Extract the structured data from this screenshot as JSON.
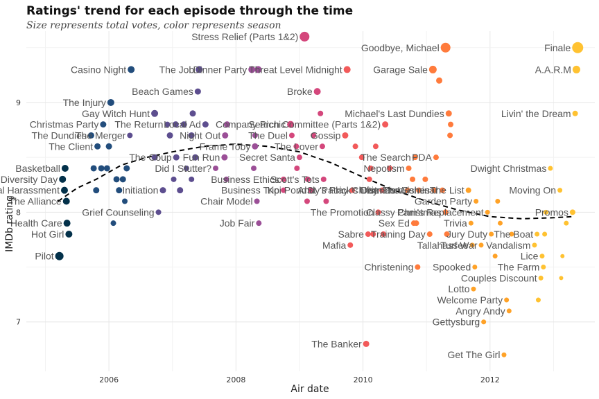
{
  "chart_data": {
    "type": "scatter",
    "title": "Ratings' trend for each episode through the time",
    "subtitle": "Size represents total votes, color represents season",
    "xlabel": "Air date",
    "ylabel": "IMDb rating",
    "xlim": [
      2004.7,
      2013.65
    ],
    "ylim": [
      6.55,
      9.65
    ],
    "x_ticks": [
      2006,
      2008,
      2010,
      2012
    ],
    "y_ticks": [
      7,
      8,
      9
    ],
    "grid": true,
    "legend": "none",
    "season_colors": {
      "1": "#03314a",
      "2": "#224d7c",
      "3": "#5d4e8f",
      "4": "#9b4f97",
      "5": "#d4477c",
      "6": "#f25a5a",
      "7": "#ff7b3c",
      "8": "#ffa227",
      "9": "#ffc231"
    },
    "trend": [
      [
        2005.2,
        8.1
      ],
      [
        2005.5,
        8.22
      ],
      [
        2005.8,
        8.3
      ],
      [
        2006.2,
        8.43
      ],
      [
        2006.6,
        8.5
      ],
      [
        2007.0,
        8.55
      ],
      [
        2007.5,
        8.6
      ],
      [
        2008.0,
        8.62
      ],
      [
        2008.5,
        8.6
      ],
      [
        2009.0,
        8.55
      ],
      [
        2009.5,
        8.45
      ],
      [
        2010.0,
        8.32
      ],
      [
        2010.5,
        8.2
      ],
      [
        2011.0,
        8.1
      ],
      [
        2011.5,
        8.02
      ],
      [
        2012.0,
        7.96
      ],
      [
        2012.5,
        7.94
      ],
      [
        2013.0,
        7.95
      ],
      [
        2013.3,
        7.96
      ]
    ],
    "points": [
      {
        "x": 2005.22,
        "y": 7.6,
        "season": 1,
        "size": 6,
        "label": "Pilot"
      },
      {
        "x": 2005.27,
        "y": 8.3,
        "season": 1,
        "size": 5,
        "label": "Diversity Day"
      },
      {
        "x": 2005.3,
        "y": 8.2,
        "season": 1,
        "size": 5,
        "label": "Sexual Harassment"
      },
      {
        "x": 2005.31,
        "y": 8.4,
        "season": 1,
        "size": 5,
        "label": "Basketball"
      },
      {
        "x": 2005.33,
        "y": 8.1,
        "season": 1,
        "size": 5,
        "label": "The Alliance"
      },
      {
        "x": 2005.34,
        "y": 7.9,
        "season": 1,
        "size": 5,
        "label": "Health Care"
      },
      {
        "x": 2005.37,
        "y": 7.8,
        "season": 1,
        "size": 5,
        "label": "Hot Girl"
      },
      {
        "x": 2005.72,
        "y": 8.7,
        "season": 2,
        "size": 4.5,
        "label": "The Dundies"
      },
      {
        "x": 2005.82,
        "y": 8.6,
        "season": 2,
        "size": 4.5,
        "label": "The Client"
      },
      {
        "x": 2005.91,
        "y": 8.8,
        "season": 2,
        "size": 4.5,
        "label": "Christmas Party"
      },
      {
        "x": 2006.03,
        "y": 9.0,
        "season": 2,
        "size": 5,
        "label": "The Injury"
      },
      {
        "x": 2006.07,
        "y": 7.9,
        "season": 2,
        "size": 4,
        "label": ""
      },
      {
        "x": 2006.0,
        "y": 8.6,
        "season": 2,
        "size": 4.5,
        "label": ""
      },
      {
        "x": 2005.88,
        "y": 8.4,
        "season": 2,
        "size": 4.5,
        "label": ""
      },
      {
        "x": 2005.97,
        "y": 8.4,
        "season": 2,
        "size": 4.5,
        "label": ""
      },
      {
        "x": 2006.12,
        "y": 8.3,
        "season": 2,
        "size": 4.5,
        "label": ""
      },
      {
        "x": 2006.16,
        "y": 8.2,
        "season": 2,
        "size": 4.5,
        "label": ""
      },
      {
        "x": 2006.22,
        "y": 8.3,
        "season": 2,
        "size": 4.5,
        "label": ""
      },
      {
        "x": 2006.25,
        "y": 8.1,
        "season": 2,
        "size": 4,
        "label": ""
      },
      {
        "x": 2006.28,
        "y": 8.4,
        "season": 2,
        "size": 4.5,
        "label": ""
      },
      {
        "x": 2006.35,
        "y": 9.3,
        "season": 2,
        "size": 5,
        "label": "Casino Night"
      },
      {
        "x": 2005.76,
        "y": 8.4,
        "season": 2,
        "size": 4.5,
        "label": ""
      },
      {
        "x": 2005.8,
        "y": 8.2,
        "season": 2,
        "size": 4.5,
        "label": ""
      },
      {
        "x": 2006.72,
        "y": 8.9,
        "season": 3,
        "size": 5,
        "label": "Gay Witch Hunt"
      },
      {
        "x": 2006.33,
        "y": 8.7,
        "season": 3,
        "size": 4,
        "label": "The Merger"
      },
      {
        "x": 2006.92,
        "y": 8.8,
        "season": 3,
        "size": 4,
        "label": "The Return"
      },
      {
        "x": 2007.06,
        "y": 8.5,
        "season": 3,
        "size": 4.5,
        "label": "The Coup"
      },
      {
        "x": 2007.4,
        "y": 9.1,
        "season": 3,
        "size": 4.5,
        "label": "Beach Games"
      },
      {
        "x": 2007.42,
        "y": 9.3,
        "season": 3,
        "size": 5,
        "label": "The Job"
      },
      {
        "x": 2006.78,
        "y": 8.0,
        "season": 3,
        "size": 4,
        "label": "Grief Counseling"
      },
      {
        "x": 2006.85,
        "y": 8.2,
        "season": 3,
        "size": 4.5,
        "label": "Initiation"
      },
      {
        "x": 2006.72,
        "y": 8.5,
        "season": 3,
        "size": 4.5,
        "label": ""
      },
      {
        "x": 2007.02,
        "y": 8.3,
        "season": 3,
        "size": 4,
        "label": ""
      },
      {
        "x": 2007.12,
        "y": 8.2,
        "season": 3,
        "size": 4.5,
        "label": ""
      },
      {
        "x": 2007.22,
        "y": 8.4,
        "season": 3,
        "size": 4,
        "label": ""
      },
      {
        "x": 2007.3,
        "y": 8.7,
        "season": 3,
        "size": 4.5,
        "label": ""
      },
      {
        "x": 2007.32,
        "y": 8.9,
        "season": 3,
        "size": 4.5,
        "label": ""
      },
      {
        "x": 2007.36,
        "y": 8.5,
        "season": 3,
        "size": 4.5,
        "label": ""
      },
      {
        "x": 2007.05,
        "y": 8.8,
        "season": 3,
        "size": 4.5,
        "label": ""
      },
      {
        "x": 2007.18,
        "y": 8.8,
        "season": 3,
        "size": 4.5,
        "label": ""
      },
      {
        "x": 2006.96,
        "y": 8.7,
        "season": 3,
        "size": 4.5,
        "label": ""
      },
      {
        "x": 2007.52,
        "y": 8.8,
        "season": 3,
        "size": 4.5,
        "label": "Local Ad"
      },
      {
        "x": 2007.3,
        "y": 8.3,
        "season": 3,
        "size": 4,
        "label": ""
      },
      {
        "x": 2007.68,
        "y": 8.4,
        "season": 4,
        "size": 4,
        "label": "Did I Stutter?"
      },
      {
        "x": 2007.82,
        "y": 8.5,
        "season": 4,
        "size": 4.5,
        "label": "Fun Run"
      },
      {
        "x": 2007.83,
        "y": 8.7,
        "season": 4,
        "size": 4.5,
        "label": "Night Out"
      },
      {
        "x": 2007.85,
        "y": 8.3,
        "season": 4,
        "size": 4,
        "label": ""
      },
      {
        "x": 2007.86,
        "y": 8.8,
        "season": 4,
        "size": 4.5,
        "label": ""
      },
      {
        "x": 2008.25,
        "y": 9.3,
        "season": 4,
        "size": 5,
        "label": "Dinner Party"
      },
      {
        "x": 2008.35,
        "y": 9.3,
        "season": 4,
        "size": 5,
        "label": ""
      },
      {
        "x": 2008.28,
        "y": 8.4,
        "season": 4,
        "size": 4,
        "label": ""
      },
      {
        "x": 2008.3,
        "y": 8.7,
        "season": 4,
        "size": 4,
        "label": ""
      },
      {
        "x": 2008.33,
        "y": 8.1,
        "season": 4,
        "size": 4,
        "label": "Chair Model"
      },
      {
        "x": 2008.36,
        "y": 7.9,
        "season": 4,
        "size": 4,
        "label": "Job Fair"
      },
      {
        "x": 2008.3,
        "y": 8.6,
        "season": 4,
        "size": 4.5,
        "label": "Frame Toby"
      },
      {
        "x": 2008.75,
        "y": 8.2,
        "season": 5,
        "size": 4,
        "label": "Business Trip"
      },
      {
        "x": 2008.75,
        "y": 8.3,
        "season": 5,
        "size": 4,
        "label": "Business Ethics"
      },
      {
        "x": 2008.86,
        "y": 8.8,
        "season": 5,
        "size": 5,
        "label": "Company Picnic"
      },
      {
        "x": 2008.88,
        "y": 8.7,
        "season": 5,
        "size": 4,
        "label": "The Duel"
      },
      {
        "x": 2008.95,
        "y": 8.6,
        "season": 5,
        "size": 4,
        "label": ""
      },
      {
        "x": 2008.96,
        "y": 8.4,
        "season": 5,
        "size": 4,
        "label": ""
      },
      {
        "x": 2009.0,
        "y": 8.5,
        "season": 5,
        "size": 4,
        "label": "Secret Santa"
      },
      {
        "x": 2009.08,
        "y": 9.6,
        "season": 5,
        "size": 7,
        "label": "Stress Relief (Parts 1&2)"
      },
      {
        "x": 2009.12,
        "y": 8.1,
        "season": 5,
        "size": 4,
        "label": ""
      },
      {
        "x": 2009.13,
        "y": 8.3,
        "season": 5,
        "size": 4,
        "label": ""
      },
      {
        "x": 2009.18,
        "y": 8.2,
        "season": 5,
        "size": 4,
        "label": "Koi Pond"
      },
      {
        "x": 2009.22,
        "y": 8.7,
        "season": 5,
        "size": 4,
        "label": ""
      },
      {
        "x": 2009.28,
        "y": 9.1,
        "season": 5,
        "size": 5,
        "label": "Broke"
      },
      {
        "x": 2009.33,
        "y": 8.9,
        "season": 5,
        "size": 4,
        "label": ""
      },
      {
        "x": 2009.36,
        "y": 8.6,
        "season": 5,
        "size": 4,
        "label": "The Lover"
      },
      {
        "x": 2009.38,
        "y": 8.3,
        "season": 5,
        "size": 4,
        "label": "Scott's Tots"
      },
      {
        "x": 2009.42,
        "y": 8.1,
        "season": 5,
        "size": 4,
        "label": ""
      },
      {
        "x": 2009.72,
        "y": 8.7,
        "season": 6,
        "size": 4.5,
        "label": "Gossip"
      },
      {
        "x": 2009.75,
        "y": 9.3,
        "season": 6,
        "size": 5,
        "label": "Threat Level Midnight"
      },
      {
        "x": 2009.8,
        "y": 7.7,
        "season": 6,
        "size": 4,
        "label": "Mafia"
      },
      {
        "x": 2009.83,
        "y": 8.2,
        "season": 6,
        "size": 4,
        "label": "Andy's Play"
      },
      {
        "x": 2009.88,
        "y": 8.6,
        "season": 6,
        "size": 4,
        "label": ""
      },
      {
        "x": 2009.98,
        "y": 8.5,
        "season": 6,
        "size": 4,
        "label": ""
      },
      {
        "x": 2010.05,
        "y": 6.8,
        "season": 6,
        "size": 4.5,
        "label": "The Banker"
      },
      {
        "x": 2010.08,
        "y": 7.8,
        "season": 6,
        "size": 4,
        "label": "Sabre"
      },
      {
        "x": 2010.1,
        "y": 8.3,
        "season": 6,
        "size": 4,
        "label": ""
      },
      {
        "x": 2010.12,
        "y": 8.4,
        "season": 6,
        "size": 4,
        "label": ""
      },
      {
        "x": 2010.16,
        "y": 7.8,
        "season": 6,
        "size": 4,
        "label": ""
      },
      {
        "x": 2010.2,
        "y": 8.6,
        "season": 6,
        "size": 4,
        "label": ""
      },
      {
        "x": 2010.24,
        "y": 8.0,
        "season": 6,
        "size": 4,
        "label": "The Promotion"
      },
      {
        "x": 2010.3,
        "y": 8.2,
        "season": 6,
        "size": 4,
        "label": "St. Patrick's Day"
      },
      {
        "x": 2010.32,
        "y": 7.8,
        "season": 6,
        "size": 4,
        "label": ""
      },
      {
        "x": 2010.35,
        "y": 8.8,
        "season": 6,
        "size": 4.5,
        "label": "Search Committee (Parts 1&2)"
      },
      {
        "x": 2010.42,
        "y": 8.4,
        "season": 6,
        "size": 4,
        "label": ""
      },
      {
        "x": 2010.7,
        "y": 8.2,
        "season": 7,
        "size": 4,
        "label": "Ultimatum"
      },
      {
        "x": 2010.72,
        "y": 8.4,
        "season": 7,
        "size": 4,
        "label": "Nepotism"
      },
      {
        "x": 2010.78,
        "y": 8.3,
        "season": 7,
        "size": 4,
        "label": ""
      },
      {
        "x": 2010.82,
        "y": 8.5,
        "season": 7,
        "size": 4,
        "label": "The Search"
      },
      {
        "x": 2010.8,
        "y": 7.9,
        "season": 7,
        "size": 4,
        "label": "Sex Ed"
      },
      {
        "x": 2010.84,
        "y": 7.9,
        "season": 7,
        "size": 4,
        "label": ""
      },
      {
        "x": 2010.86,
        "y": 7.5,
        "season": 7,
        "size": 4,
        "label": "Christening"
      },
      {
        "x": 2010.88,
        "y": 8.2,
        "season": 7,
        "size": 4,
        "label": ""
      },
      {
        "x": 2010.98,
        "y": 8.3,
        "season": 7,
        "size": 4,
        "label": ""
      },
      {
        "x": 2011.1,
        "y": 9.3,
        "season": 7,
        "size": 5.5,
        "label": "Garage Sale"
      },
      {
        "x": 2011.15,
        "y": 8.5,
        "season": 7,
        "size": 4,
        "label": "PDA"
      },
      {
        "x": 2011.2,
        "y": 9.2,
        "season": 7,
        "size": 4.5,
        "label": ""
      },
      {
        "x": 2011.25,
        "y": 8.2,
        "season": 7,
        "size": 4,
        "label": "The Seminar"
      },
      {
        "x": 2011.3,
        "y": 8.0,
        "season": 7,
        "size": 4,
        "label": "Classy Christmas"
      },
      {
        "x": 2011.32,
        "y": 7.8,
        "season": 7,
        "size": 4,
        "label": ""
      },
      {
        "x": 2011.35,
        "y": 8.9,
        "season": 7,
        "size": 4.5,
        "label": "Michael's Last Dundies"
      },
      {
        "x": 2011.37,
        "y": 8.7,
        "season": 7,
        "size": 4,
        "label": ""
      },
      {
        "x": 2011.38,
        "y": 8.8,
        "season": 7,
        "size": 4,
        "label": ""
      },
      {
        "x": 2011.3,
        "y": 9.5,
        "season": 7,
        "size": 7,
        "label": "Goodbye, Michael"
      },
      {
        "x": 2011.12,
        "y": 8.2,
        "season": 7,
        "size": 4,
        "label": "Christmas Wishes"
      },
      {
        "x": 2011.05,
        "y": 7.8,
        "season": 7,
        "size": 4,
        "label": "Training Day"
      },
      {
        "x": 2011.66,
        "y": 8.2,
        "season": 8,
        "size": 4,
        "label": "The List"
      },
      {
        "x": 2011.7,
        "y": 7.9,
        "season": 8,
        "size": 3.5,
        "label": "Trivia"
      },
      {
        "x": 2011.72,
        "y": 7.7,
        "season": 8,
        "size": 3.5,
        "label": "Tallahassee"
      },
      {
        "x": 2011.74,
        "y": 7.3,
        "season": 8,
        "size": 3.5,
        "label": "Lotto"
      },
      {
        "x": 2011.76,
        "y": 7.5,
        "season": 8,
        "size": 3.5,
        "label": "Spooked"
      },
      {
        "x": 2011.78,
        "y": 8.1,
        "season": 8,
        "size": 3.5,
        "label": "Garden Party"
      },
      {
        "x": 2011.86,
        "y": 7.7,
        "season": 8,
        "size": 3.5,
        "label": "Turf War"
      },
      {
        "x": 2011.9,
        "y": 7.0,
        "season": 8,
        "size": 3.5,
        "label": "Gettysburg"
      },
      {
        "x": 2011.96,
        "y": 8.0,
        "season": 8,
        "size": 3.5,
        "label": "Pam's Replacement"
      },
      {
        "x": 2012.02,
        "y": 7.8,
        "season": 8,
        "size": 3.5,
        "label": "Jury Duty"
      },
      {
        "x": 2012.08,
        "y": 7.6,
        "season": 8,
        "size": 3.5,
        "label": ""
      },
      {
        "x": 2012.12,
        "y": 8.1,
        "season": 8,
        "size": 3.5,
        "label": ""
      },
      {
        "x": 2012.16,
        "y": 7.9,
        "season": 8,
        "size": 3.5,
        "label": ""
      },
      {
        "x": 2012.22,
        "y": 6.7,
        "season": 8,
        "size": 3.5,
        "label": "Get The Girl"
      },
      {
        "x": 2012.26,
        "y": 7.2,
        "season": 8,
        "size": 3.5,
        "label": "Welcome Party"
      },
      {
        "x": 2012.3,
        "y": 7.1,
        "season": 8,
        "size": 3.5,
        "label": "Angry Andy"
      },
      {
        "x": 2012.34,
        "y": 7.8,
        "season": 8,
        "size": 3.5,
        "label": ""
      },
      {
        "x": 2012.7,
        "y": 7.7,
        "season": 9,
        "size": 3.5,
        "label": "Vandalism"
      },
      {
        "x": 2012.74,
        "y": 7.8,
        "season": 9,
        "size": 3.5,
        "label": "The Boat"
      },
      {
        "x": 2012.76,
        "y": 7.2,
        "season": 9,
        "size": 3.5,
        "label": ""
      },
      {
        "x": 2012.8,
        "y": 7.4,
        "season": 9,
        "size": 3.5,
        "label": "Couples Discount"
      },
      {
        "x": 2012.82,
        "y": 7.6,
        "season": 9,
        "size": 3.5,
        "label": "Lice"
      },
      {
        "x": 2012.84,
        "y": 7.5,
        "season": 9,
        "size": 3.5,
        "label": "The Farm"
      },
      {
        "x": 2012.86,
        "y": 7.8,
        "season": 9,
        "size": 3.5,
        "label": ""
      },
      {
        "x": 2012.88,
        "y": 8.0,
        "season": 9,
        "size": 3.5,
        "label": ""
      },
      {
        "x": 2012.95,
        "y": 8.4,
        "season": 9,
        "size": 3.5,
        "label": "Dwight Christmas"
      },
      {
        "x": 2013.1,
        "y": 8.2,
        "season": 9,
        "size": 3.5,
        "label": "Moving On"
      },
      {
        "x": 2013.12,
        "y": 7.4,
        "season": 9,
        "size": 3,
        "label": ""
      },
      {
        "x": 2013.14,
        "y": 7.6,
        "season": 9,
        "size": 3,
        "label": ""
      },
      {
        "x": 2013.2,
        "y": 7.9,
        "season": 9,
        "size": 3.5,
        "label": ""
      },
      {
        "x": 2013.3,
        "y": 8.0,
        "season": 9,
        "size": 4,
        "label": "Promos"
      },
      {
        "x": 2013.34,
        "y": 8.9,
        "season": 9,
        "size": 4,
        "label": "Livin' the Dream"
      },
      {
        "x": 2013.36,
        "y": 9.3,
        "season": 9,
        "size": 5.5,
        "label": "A.A.R.M"
      },
      {
        "x": 2013.38,
        "y": 9.5,
        "season": 9,
        "size": 8,
        "label": "Finale"
      }
    ]
  }
}
